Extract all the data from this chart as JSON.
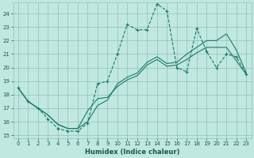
{
  "title": "",
  "xlabel": "Humidex (Indice chaleur)",
  "bg_color": "#c0e8e0",
  "grid_color": "#90c0b8",
  "line_color": "#1a7a6a",
  "xlim": [
    -0.5,
    23.5
  ],
  "ylim": [
    14.8,
    24.8
  ],
  "xticks": [
    0,
    1,
    2,
    3,
    4,
    5,
    6,
    7,
    8,
    9,
    10,
    11,
    12,
    13,
    14,
    15,
    16,
    17,
    18,
    19,
    20,
    21,
    22,
    23
  ],
  "yticks": [
    15,
    16,
    17,
    18,
    19,
    20,
    21,
    22,
    23,
    24
  ],
  "line1_x": [
    0,
    1,
    2,
    3,
    4,
    5,
    6,
    7,
    8,
    9,
    10,
    11,
    12,
    13,
    14,
    15,
    16,
    17,
    18,
    19,
    20,
    21,
    22,
    23
  ],
  "line1_y": [
    18.5,
    17.5,
    17.0,
    16.2,
    15.5,
    15.3,
    15.3,
    15.9,
    18.8,
    19.0,
    21.0,
    23.2,
    22.8,
    22.8,
    24.7,
    24.2,
    20.0,
    19.7,
    22.9,
    21.2,
    20.0,
    21.0,
    20.8,
    19.5
  ],
  "line2_x": [
    0,
    1,
    2,
    3,
    4,
    5,
    6,
    7,
    8,
    9,
    10,
    11,
    12,
    13,
    14,
    15,
    16,
    17,
    18,
    19,
    20,
    21,
    22,
    23
  ],
  "line2_y": [
    18.5,
    17.5,
    17.0,
    16.5,
    15.8,
    15.5,
    15.5,
    16.8,
    17.7,
    17.8,
    18.6,
    19.1,
    19.4,
    20.2,
    20.6,
    20.1,
    20.2,
    20.6,
    21.1,
    21.5,
    21.5,
    21.5,
    20.5,
    19.5
  ],
  "line3_x": [
    0,
    1,
    2,
    3,
    4,
    5,
    6,
    7,
    8,
    9,
    10,
    11,
    12,
    13,
    14,
    15,
    16,
    17,
    18,
    19,
    20,
    21,
    22,
    23
  ],
  "line3_y": [
    18.5,
    17.5,
    17.0,
    16.5,
    15.8,
    15.5,
    15.5,
    16.0,
    17.2,
    17.6,
    18.8,
    19.3,
    19.6,
    20.4,
    20.8,
    20.3,
    20.4,
    21.0,
    21.5,
    22.0,
    22.0,
    22.5,
    21.3,
    19.6
  ]
}
